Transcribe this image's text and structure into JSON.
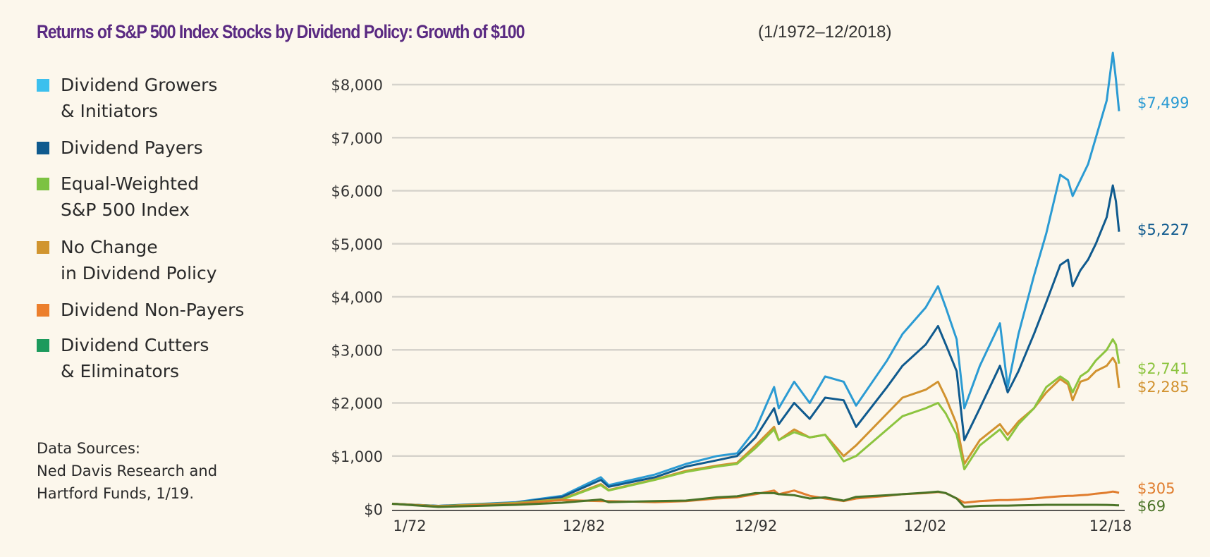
{
  "title": {
    "main": "Returns of S&P 500 Index Stocks by Dividend Policy: Growth of $100",
    "period": "(1/1972–12/2018)"
  },
  "sources": {
    "line1": "Data Sources:",
    "line2": "Ned Davis Research and",
    "line3": "Hartford Funds, 1/19."
  },
  "chart_data": {
    "type": "line",
    "title": "Returns of S&P 500 Index Stocks by Dividend Policy: Growth of $100",
    "xlabel": "",
    "ylabel": "",
    "ylim": [
      0,
      8000
    ],
    "xlim": [
      1972,
      2019
    ],
    "y_ticks": [
      "$0",
      "$1,000",
      "$2,000",
      "$3,000",
      "$4,000",
      "$5,000",
      "$6,000",
      "$7,000",
      "$8,000"
    ],
    "x_ticks": [
      "1/72",
      "12/82",
      "12/92",
      "12/02",
      "12/18"
    ],
    "grid": true,
    "legend_position": "left",
    "x": [
      1972,
      1975,
      1980,
      1983,
      1985.5,
      1986,
      1989,
      1991,
      1993,
      1994.3,
      1995.5,
      1996.7,
      1997,
      1998,
      1999,
      2000,
      2001.2,
      2002,
      2004,
      2005,
      2006.5,
      2007.3,
      2007.8,
      2008.5,
      2009,
      2010,
      2011.3,
      2011.8,
      2012.5,
      2013.5,
      2014.3,
      2015.2,
      2015.7,
      2016,
      2016.5,
      2017,
      2017.5,
      2018.2,
      2018.6,
      2018.8,
      2019
    ],
    "series": [
      {
        "name": "Dividend Growers\n& Initiators",
        "color": "#2b9bd3",
        "end_label": "$7,499",
        "legend_color": "#3cc0ee",
        "values": [
          100,
          60,
          130,
          250,
          600,
          450,
          650,
          850,
          1000,
          1050,
          1500,
          2300,
          1900,
          2400,
          2000,
          2500,
          2400,
          1950,
          2800,
          3300,
          3800,
          4200,
          3800,
          3200,
          1900,
          2700,
          3500,
          2300,
          3300,
          4400,
          5200,
          6300,
          6200,
          5900,
          6200,
          6500,
          7000,
          7700,
          8600,
          8100,
          7499
        ]
      },
      {
        "name": "Dividend Payers",
        "color": "#0f5a8e",
        "end_label": "$5,227",
        "legend_color": "#0f5a8e",
        "values": [
          100,
          60,
          120,
          230,
          550,
          420,
          600,
          800,
          920,
          1000,
          1350,
          1900,
          1600,
          2000,
          1700,
          2100,
          2050,
          1550,
          2300,
          2700,
          3100,
          3450,
          3100,
          2600,
          1300,
          1900,
          2700,
          2200,
          2600,
          3300,
          3900,
          4600,
          4700,
          4200,
          4500,
          4700,
          5000,
          5500,
          6100,
          5800,
          5227
        ]
      },
      {
        "name": "Equal-Weighted\nS&P 500 Index",
        "color": "#8cc43f",
        "end_label": "$2,741",
        "legend_color": "#7cc242",
        "values": [
          100,
          55,
          110,
          180,
          450,
          350,
          550,
          700,
          800,
          850,
          1150,
          1500,
          1300,
          1450,
          1350,
          1400,
          900,
          1000,
          1500,
          1750,
          1900,
          2000,
          1800,
          1400,
          750,
          1200,
          1500,
          1300,
          1600,
          1900,
          2300,
          2500,
          2400,
          2200,
          2500,
          2600,
          2800,
          3000,
          3200,
          3100,
          2741
        ]
      },
      {
        "name": "No Change\nin Dividend Policy",
        "color": "#d1922f",
        "end_label": "$2,285",
        "legend_color": "#d1952f",
        "values": [
          100,
          55,
          115,
          190,
          470,
          360,
          560,
          720,
          820,
          870,
          1200,
          1550,
          1300,
          1500,
          1350,
          1400,
          1000,
          1200,
          1800,
          2100,
          2250,
          2400,
          2100,
          1600,
          850,
          1300,
          1600,
          1400,
          1650,
          1900,
          2200,
          2450,
          2350,
          2050,
          2400,
          2450,
          2600,
          2700,
          2850,
          2750,
          2285
        ]
      },
      {
        "name": "Dividend Non-Payers",
        "color": "#e07d2e",
        "end_label": "$305",
        "legend_color": "#ec7f2c",
        "values": [
          100,
          50,
          100,
          170,
          150,
          150,
          130,
          150,
          200,
          220,
          280,
          350,
          280,
          350,
          250,
          200,
          150,
          200,
          250,
          280,
          300,
          320,
          300,
          200,
          120,
          150,
          170,
          170,
          180,
          200,
          220,
          240,
          250,
          250,
          260,
          270,
          290,
          310,
          330,
          320,
          305
        ]
      },
      {
        "name": "Dividend Cutters\n& Eliminators",
        "color": "#4b7428",
        "end_label": "$69",
        "legend_color": "#1c9a5c",
        "values": [
          100,
          40,
          80,
          120,
          180,
          130,
          150,
          160,
          220,
          240,
          300,
          300,
          280,
          260,
          200,
          220,
          160,
          230,
          260,
          280,
          310,
          330,
          300,
          200,
          40,
          60,
          65,
          65,
          70,
          75,
          80,
          80,
          80,
          80,
          80,
          80,
          80,
          78,
          75,
          72,
          69
        ]
      }
    ]
  }
}
